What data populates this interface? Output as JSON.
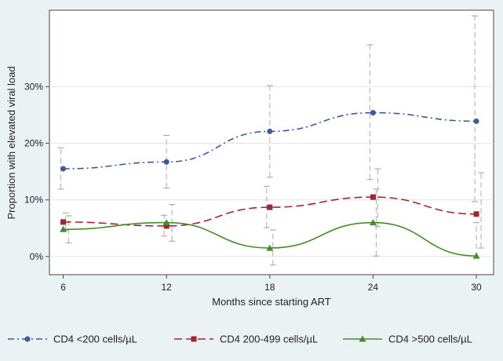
{
  "chart_data": {
    "type": "line",
    "title": "",
    "xlabel": "Months since starting ART",
    "ylabel": "Proportion with elevated viral load",
    "x": [
      6,
      12,
      18,
      24,
      30
    ],
    "x_ticks": [
      6,
      12,
      18,
      24,
      30
    ],
    "xlim": [
      5.2,
      31
    ],
    "ylim": [
      -3.2,
      43.5
    ],
    "y_ticks": [
      0,
      10,
      20,
      30
    ],
    "y_tick_labels": [
      "0%",
      "10%",
      "20%",
      "30%"
    ],
    "grid": "horizontal",
    "legend_position": "bottom",
    "series": [
      {
        "name": "CD4 <200 cells/µL",
        "color": "#3b5a99",
        "dash": "8,4,2,4",
        "marker": "circle",
        "values": [
          15.5,
          16.7,
          22.1,
          25.4,
          23.9
        ],
        "ci_low": [
          11.9,
          12.1,
          14.0,
          13.6,
          9.7
        ],
        "ci_high": [
          19.2,
          21.4,
          30.2,
          37.4,
          42.5
        ]
      },
      {
        "name": "CD4 200-499 cells/µL",
        "color": "#a32330",
        "dash": "10,5",
        "marker": "square",
        "values": [
          6.1,
          5.4,
          8.7,
          10.5,
          7.5
        ],
        "ci_low": [
          4.6,
          3.6,
          5.1,
          5.3,
          1.5
        ],
        "ci_high": [
          7.7,
          7.3,
          12.4,
          15.5,
          14.8
        ]
      },
      {
        "name": "CD4 >500 cells/µL",
        "color": "#4a8a2e",
        "dash": "",
        "marker": "triangle",
        "values": [
          4.8,
          6.0,
          1.5,
          6.0,
          0.1
        ],
        "ci_low": [
          2.4,
          2.7,
          -1.5,
          0.1,
          -0.2
        ],
        "ci_high": [
          7.2,
          9.2,
          4.7,
          11.9,
          6.0
        ]
      }
    ]
  }
}
